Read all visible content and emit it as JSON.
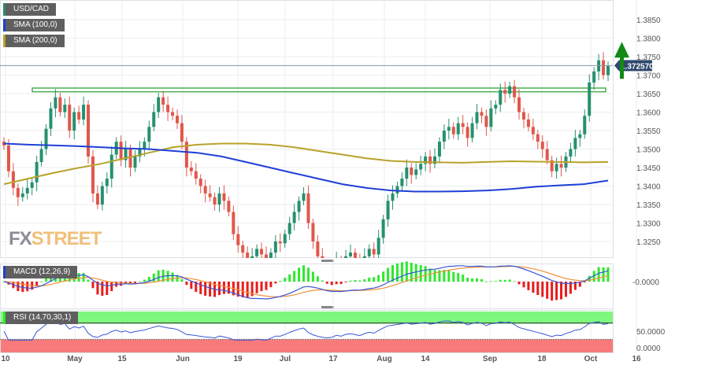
{
  "legend": {
    "symbol": "USD/CAD",
    "sma100": "SMA (100,0)",
    "sma200": "SMA (200,0)",
    "macd": "MACD (12,26,9)",
    "rsi": "RSI (14,70,30,1)"
  },
  "watermark": {
    "fx": "FX",
    "street": "STREET"
  },
  "colors": {
    "up": "#26906f",
    "down": "#e0574b",
    "sma100": "#1f3fd6",
    "sma200": "#b8a22a",
    "zone": "#4caf50",
    "arrow": "#138a13",
    "price_tag": "#2f4a6b",
    "macd_line": "#3a55d6",
    "signal_line": "#f0913b",
    "hist_up": "#2ee82e",
    "hist_down": "#e81b1b",
    "rsi_line": "#3a55d6",
    "overbought": "#7ef77e",
    "oversold": "#f87a7a"
  },
  "chart_data": {
    "type": "candlestick",
    "price_ylim": [
      1.32,
      1.388
    ],
    "price_ticks": [
      "1.3850",
      "1.3800",
      "1.3750",
      "1.3700",
      "1.3650",
      "1.3600",
      "1.3550",
      "1.3500",
      "1.3450",
      "1.3400",
      "1.3350",
      "1.3300",
      "1.3250"
    ],
    "current_price": "1.372570",
    "x_labels": [
      "10",
      "May",
      "15",
      "Jun",
      "19",
      "Jul",
      "17",
      "Aug",
      "14",
      "Sep",
      "18",
      "Oct",
      "16"
    ],
    "closes": [
      1.351,
      1.344,
      1.3395,
      1.337,
      1.338,
      1.3395,
      1.341,
      1.3465,
      1.35,
      1.3555,
      1.361,
      1.364,
      1.36,
      1.362,
      1.355,
      1.36,
      1.358,
      1.362,
      1.348,
      1.338,
      1.335,
      1.34,
      1.342,
      1.3485,
      1.352,
      1.347,
      1.35,
      1.345,
      1.348,
      1.35,
      1.352,
      1.356,
      1.36,
      1.364,
      1.362,
      1.36,
      1.359,
      1.357,
      1.352,
      1.345,
      1.344,
      1.342,
      1.34,
      1.338,
      1.337,
      1.335,
      1.338,
      1.336,
      1.333,
      1.327,
      1.324,
      1.322,
      1.32,
      1.321,
      1.323,
      1.3215,
      1.319,
      1.322,
      1.325,
      1.3245,
      1.327,
      1.33,
      1.333,
      1.336,
      1.338,
      1.33,
      1.325,
      1.321,
      1.318,
      1.316,
      1.317,
      1.32,
      1.318,
      1.321,
      1.322,
      1.32,
      1.318,
      1.321,
      1.323,
      1.3215,
      1.326,
      1.331,
      1.336,
      1.338,
      1.34,
      1.342,
      1.345,
      1.343,
      1.3445,
      1.346,
      1.348,
      1.346,
      1.348,
      1.352,
      1.355,
      1.356,
      1.354,
      1.357,
      1.356,
      1.353,
      1.357,
      1.36,
      1.359,
      1.356,
      1.361,
      1.362,
      1.366,
      1.365,
      1.367,
      1.364,
      1.36,
      1.358,
      1.356,
      1.354,
      1.352,
      1.35,
      1.347,
      1.344,
      1.346,
      1.345,
      1.348,
      1.35,
      1.353,
      1.354,
      1.359,
      1.368,
      1.371,
      1.374,
      1.37,
      1.3725
    ],
    "sma100_weekly": [
      1.3515,
      1.3512,
      1.351,
      1.3508,
      1.3505,
      1.3502,
      1.35,
      1.3495,
      1.349,
      1.348,
      1.3465,
      1.345,
      1.3435,
      1.342,
      1.3405,
      1.3395,
      1.3388,
      1.3385,
      1.3385,
      1.3386,
      1.3388,
      1.3392,
      1.3398,
      1.3402,
      1.3405,
      1.3415
    ],
    "sma200_weekly": [
      1.3405,
      1.342,
      1.3435,
      1.3448,
      1.346,
      1.3475,
      1.349,
      1.3505,
      1.3512,
      1.3515,
      1.3515,
      1.3512,
      1.3505,
      1.3495,
      1.3485,
      1.3475,
      1.3468,
      1.3465,
      1.3464,
      1.3463,
      1.3465,
      1.3467,
      1.3466,
      1.3465,
      1.3464,
      1.3465
    ],
    "resistance_zone": [
      1.3655,
      1.3665
    ],
    "arrow": {
      "from": 1.369,
      "to": 1.379,
      "direction": "up"
    },
    "macd_label": "-0.0000",
    "rsi_ticks": [
      "50.0000",
      "0.0000"
    ],
    "rsi_levels": [
      30,
      70
    ]
  }
}
